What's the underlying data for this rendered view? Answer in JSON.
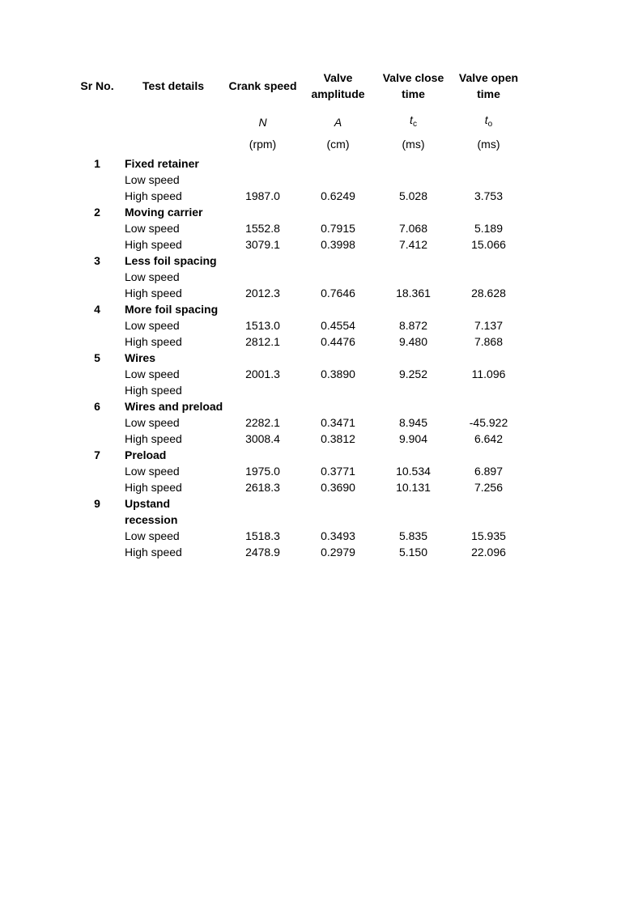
{
  "header": {
    "sr": "Sr No.",
    "details": "Test details",
    "crank": "Crank speed",
    "amp": "Valve amplitude",
    "close": "Valve close time",
    "open": "Valve open time"
  },
  "symbols": {
    "N": "N",
    "A": "A",
    "t": "t",
    "sub_c": "c",
    "sub_o": "o"
  },
  "units": {
    "rpm": "(rpm)",
    "cm": "(cm)",
    "ms1": "(ms)",
    "ms2": "(ms)"
  },
  "labels": {
    "low": "Low speed",
    "high": "High speed"
  },
  "sections": [
    {
      "sr": "1",
      "name": "Fixed retainer",
      "low": {
        "N": "",
        "A": "",
        "tc": "",
        "to": ""
      },
      "high": {
        "N": "1987.0",
        "A": "0.6249",
        "tc": "5.028",
        "to": "3.753"
      }
    },
    {
      "sr": "2",
      "name": "Moving carrier",
      "low": {
        "N": "1552.8",
        "A": "0.7915",
        "tc": "7.068",
        "to": "5.189"
      },
      "high": {
        "N": "3079.1",
        "A": "0.3998",
        "tc": "7.412",
        "to": "15.066"
      }
    },
    {
      "sr": "3",
      "name": "Less foil spacing",
      "low": {
        "N": "",
        "A": "",
        "tc": "",
        "to": ""
      },
      "high": {
        "N": "2012.3",
        "A": "0.7646",
        "tc": "18.361",
        "to": "28.628"
      }
    },
    {
      "sr": "4",
      "name": "More foil spacing",
      "low": {
        "N": "1513.0",
        "A": "0.4554",
        "tc": "8.872",
        "to": "7.137"
      },
      "high": {
        "N": "2812.1",
        "A": "0.4476",
        "tc": "9.480",
        "to": "7.868"
      }
    },
    {
      "sr": "5",
      "name": "Wires",
      "low": {
        "N": "2001.3",
        "A": "0.3890",
        "tc": "9.252",
        "to": "11.096"
      },
      "high": {
        "N": "",
        "A": "",
        "tc": "",
        "to": ""
      }
    },
    {
      "sr": "6",
      "name": "Wires and preload",
      "low": {
        "N": "2282.1",
        "A": "0.3471",
        "tc": "8.945",
        "to": "-45.922"
      },
      "high": {
        "N": "3008.4",
        "A": "0.3812",
        "tc": "9.904",
        "to": "6.642"
      }
    },
    {
      "sr": "7",
      "name": "Preload",
      "low": {
        "N": "1975.0",
        "A": "0.3771",
        "tc": "10.534",
        "to": "6.897"
      },
      "high": {
        "N": "2618.3",
        "A": "0.3690",
        "tc": "10.131",
        "to": "7.256"
      }
    },
    {
      "sr": "9",
      "name": "Upstand recession",
      "low": {
        "N": "1518.3",
        "A": "0.3493",
        "tc": "5.835",
        "to": "15.935"
      },
      "high": {
        "N": "2478.9",
        "A": "0.2979",
        "tc": "5.150",
        "to": "22.096"
      }
    }
  ]
}
